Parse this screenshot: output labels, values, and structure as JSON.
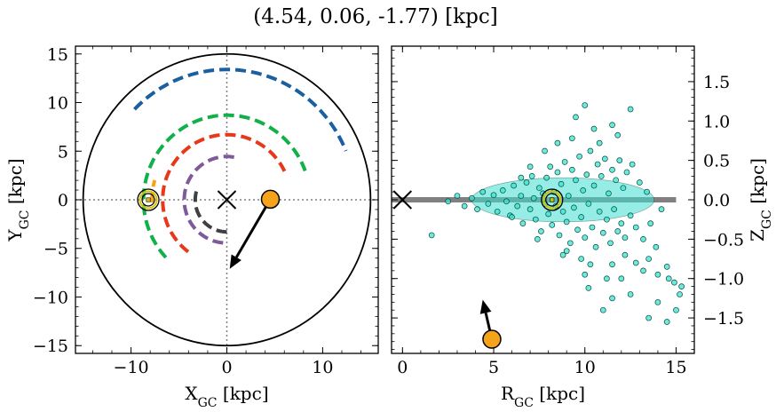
{
  "figure": {
    "title": "(4.54, 0.06, -1.77) [kpc]"
  },
  "chart_data": [
    {
      "type": "scatter",
      "panel": "left",
      "xlabel": "X",
      "xlabel_sub": "GC",
      "xlabel_unit": " [kpc]",
      "ylabel": "Y",
      "ylabel_sub": "GC",
      "ylabel_unit": " [kpc]",
      "xlim": [
        -15.8,
        15.8
      ],
      "ylim": [
        -15.8,
        15.8
      ],
      "xticks": [
        -10,
        0,
        10
      ],
      "yticks": [
        -15,
        -10,
        -5,
        0,
        5,
        10,
        15
      ],
      "xtick_labels": [
        "−10",
        "0",
        "10"
      ],
      "ytick_labels": [
        "−15",
        "−10",
        "−5",
        "0",
        "5",
        "10",
        "15"
      ],
      "grid": false,
      "reference_lines": {
        "x": 0,
        "y": 0,
        "style": "dotted",
        "color": "#808080"
      },
      "galaxy_boundary_radius": 15,
      "spiral_arms": [
        {
          "color": "#1a5fa0",
          "radius": 13.4,
          "theta_start_deg": 136,
          "theta_end_deg": 22
        },
        {
          "color": "#12b04a",
          "radius": 8.7,
          "theta_start_deg": 223,
          "theta_end_deg": 20
        },
        {
          "color": "#e8381a",
          "radius": 6.7,
          "theta_start_deg": 233,
          "theta_end_deg": 26
        },
        {
          "color": "#7e5a9b",
          "radius": 4.45,
          "theta_start_deg": 265,
          "theta_end_deg": 78
        },
        {
          "color": "#404040",
          "radius": 3.3,
          "theta_start_deg": 270,
          "theta_end_deg": 165
        },
        {
          "color": "#f5a31a",
          "radius": 7.8,
          "theta_start_deg": 182,
          "theta_end_deg": 165
        }
      ],
      "galactic_center": {
        "x": 0,
        "y": 0,
        "marker": "x"
      },
      "sun": {
        "x": -8.2,
        "y": 0,
        "marker": "circled-dot",
        "color": "#d4c400"
      },
      "object": {
        "x": 4.54,
        "y": 0.06,
        "color": "#f5a31a"
      },
      "velocity_arrow": {
        "x_start": 4.54,
        "y_start": 0.06,
        "x_end": 0.3,
        "y_end": -7.1
      }
    },
    {
      "type": "scatter",
      "panel": "right",
      "xlabel": "R",
      "xlabel_sub": "GC",
      "xlabel_unit": " [kpc]",
      "ylabel": "Z",
      "ylabel_sub": "GC",
      "ylabel_unit": " [kpc]",
      "ylabel_side": "right",
      "xlim": [
        -0.6,
        16
      ],
      "ylim": [
        -1.95,
        1.95
      ],
      "xticks": [
        0,
        5,
        10,
        15
      ],
      "yticks": [
        -1.5,
        -1.0,
        -0.5,
        0.0,
        0.5,
        1.0,
        1.5
      ],
      "xtick_labels": [
        "0",
        "5",
        "10",
        "15"
      ],
      "ytick_labels": [
        "−1.5",
        "−1.0",
        "−0.5",
        "0.0",
        "0.5",
        "1.0",
        "1.5"
      ],
      "grid": false,
      "disk_line": {
        "z": 0,
        "r_start": -0.6,
        "r_end": 15,
        "color": "#808080"
      },
      "galactic_center": {
        "r": 0,
        "z": 0,
        "marker": "x"
      },
      "sun": {
        "r": 8.2,
        "z": 0,
        "marker": "circled-dot",
        "color": "#d4c400"
      },
      "object": {
        "r": 4.9,
        "z": -1.77,
        "color": "#f5a31a"
      },
      "velocity_arrow": {
        "r_start": 4.9,
        "z_start": -1.77,
        "r_end": 4.4,
        "z_end": -1.27
      },
      "stars": {
        "color": "#40e0d0",
        "edge_color": "#004d40",
        "points": [
          [
            1.6,
            -0.45
          ],
          [
            2.5,
            -0.02
          ],
          [
            3.0,
            0.05
          ],
          [
            3.4,
            -0.08
          ],
          [
            3.8,
            0.02
          ],
          [
            4.1,
            -0.12
          ],
          [
            4.4,
            0.1
          ],
          [
            4.7,
            -0.05
          ],
          [
            5.0,
            0.06
          ],
          [
            5.2,
            -0.15
          ],
          [
            5.5,
            0.12
          ],
          [
            5.7,
            -0.02
          ],
          [
            5.9,
            -0.2
          ],
          [
            6.1,
            0.18
          ],
          [
            6.3,
            -0.08
          ],
          [
            6.5,
            0.05
          ],
          [
            6.6,
            -0.3
          ],
          [
            6.8,
            0.22
          ],
          [
            7.0,
            -0.12
          ],
          [
            7.1,
            0.3
          ],
          [
            7.2,
            0.02
          ],
          [
            7.3,
            -0.25
          ],
          [
            7.5,
            0.15
          ],
          [
            7.6,
            -0.4
          ],
          [
            7.7,
            0.08
          ],
          [
            7.8,
            -0.05
          ],
          [
            7.9,
            0.28
          ],
          [
            8.0,
            -0.18
          ],
          [
            8.1,
            0.42
          ],
          [
            8.2,
            -0.32
          ],
          [
            8.3,
            0.1
          ],
          [
            8.4,
            -0.08
          ],
          [
            8.5,
            0.35
          ],
          [
            8.6,
            -0.45
          ],
          [
            8.7,
            0.2
          ],
          [
            8.8,
            -0.15
          ],
          [
            8.9,
            0.48
          ],
          [
            9.0,
            -0.28
          ],
          [
            9.1,
            0.05
          ],
          [
            9.2,
            -0.55
          ],
          [
            9.3,
            0.38
          ],
          [
            9.4,
            -0.1
          ],
          [
            9.5,
            0.25
          ],
          [
            9.6,
            -0.38
          ],
          [
            9.7,
            0.55
          ],
          [
            9.8,
            -0.22
          ],
          [
            9.9,
            0.12
          ],
          [
            10.0,
            -0.48
          ],
          [
            10.1,
            0.32
          ],
          [
            10.2,
            -0.05
          ],
          [
            10.3,
            0.62
          ],
          [
            10.4,
            -0.35
          ],
          [
            10.5,
            0.18
          ],
          [
            10.6,
            -0.6
          ],
          [
            10.7,
            0.45
          ],
          [
            10.8,
            -0.15
          ],
          [
            10.9,
            0.3
          ],
          [
            11.0,
            -0.42
          ],
          [
            11.1,
            0.52
          ],
          [
            11.2,
            -0.25
          ],
          [
            11.3,
            0.08
          ],
          [
            11.4,
            -0.55
          ],
          [
            11.5,
            0.38
          ],
          [
            11.6,
            -0.12
          ],
          [
            11.7,
            0.25
          ],
          [
            11.8,
            -0.4
          ],
          [
            11.9,
            0.5
          ],
          [
            12.0,
            -0.3
          ],
          [
            12.1,
            0.15
          ],
          [
            12.2,
            -0.48
          ],
          [
            12.3,
            0.35
          ],
          [
            12.5,
            -0.2
          ],
          [
            12.6,
            0.45
          ],
          [
            12.8,
            -0.35
          ],
          [
            13.0,
            0.22
          ],
          [
            13.2,
            -0.5
          ],
          [
            13.4,
            0.1
          ],
          [
            13.6,
            -0.3
          ],
          [
            13.9,
            -0.6
          ],
          [
            14.2,
            -0.12
          ],
          [
            9.5,
            1.05
          ],
          [
            10.0,
            1.2
          ],
          [
            10.5,
            0.9
          ],
          [
            11.5,
            0.95
          ],
          [
            12.5,
            1.15
          ],
          [
            11.8,
            0.82
          ],
          [
            9.3,
            0.78
          ],
          [
            8.5,
            0.72
          ],
          [
            7.8,
            0.62
          ],
          [
            10.8,
            0.72
          ],
          [
            12.2,
            -0.7
          ],
          [
            12.8,
            -0.8
          ],
          [
            13.2,
            -0.9
          ],
          [
            13.5,
            -0.75
          ],
          [
            14.0,
            -0.95
          ],
          [
            14.5,
            -0.85
          ],
          [
            14.6,
            -1.0
          ],
          [
            14.9,
            -1.05
          ],
          [
            15.3,
            -1.1
          ],
          [
            11.5,
            -0.82
          ],
          [
            10.3,
            -0.82
          ],
          [
            9.8,
            -0.75
          ],
          [
            9.0,
            -0.65
          ],
          [
            8.8,
            -0.7
          ],
          [
            11.2,
            -1.0
          ],
          [
            12.0,
            -1.0
          ],
          [
            10.2,
            -1.12
          ],
          [
            11.5,
            -1.25
          ],
          [
            14.0,
            -1.3
          ],
          [
            14.5,
            -1.55
          ],
          [
            15.0,
            -1.4
          ],
          [
            15.2,
            -1.2
          ],
          [
            13.5,
            -1.5
          ],
          [
            12.5,
            -1.2
          ],
          [
            11.0,
            -1.4
          ],
          [
            10.0,
            -0.95
          ],
          [
            6.5,
            0.28
          ],
          [
            6.0,
            -0.22
          ],
          [
            7.0,
            0.42
          ],
          [
            7.4,
            -0.5
          ]
        ]
      }
    }
  ]
}
